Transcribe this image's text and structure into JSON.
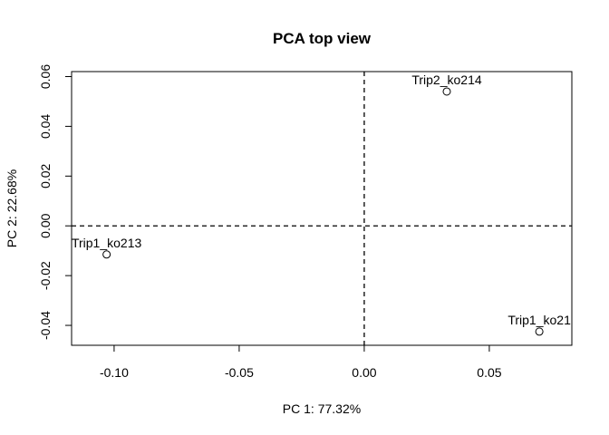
{
  "chart_data": {
    "type": "scatter",
    "title": "PCA top view",
    "xlabel": "PC 1: 77.32%",
    "ylabel": "PC 2: 22.68%",
    "xlim": [
      -0.117,
      0.083
    ],
    "ylim": [
      -0.048,
      0.062
    ],
    "xticks": [
      -0.1,
      -0.05,
      0.0,
      0.05
    ],
    "xtick_labels": [
      "-0.10",
      "-0.05",
      "0.00",
      "0.05"
    ],
    "yticks": [
      -0.04,
      -0.02,
      0.0,
      0.02,
      0.04,
      0.06
    ],
    "ytick_labels": [
      "-0.04",
      "-0.02",
      "0.00",
      "0.02",
      "0.04",
      "0.06"
    ],
    "reference_lines": {
      "x": 0,
      "y": 0,
      "style": "dashed"
    },
    "grid": false,
    "points": [
      {
        "label": "Trip2_ko214",
        "x": 0.033,
        "y": 0.054
      },
      {
        "label": "Trip1_ko213",
        "x": -0.103,
        "y": -0.0115
      },
      {
        "label": "Trip1_ko21",
        "x": 0.07,
        "y": -0.0425
      }
    ]
  }
}
